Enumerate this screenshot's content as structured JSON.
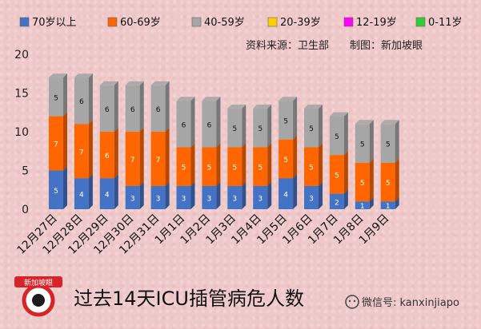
{
  "chart_data": {
    "type": "bar",
    "stacked": true,
    "title": "过去14天ICU插管病危人数",
    "source_label": "资料来源：卫生部",
    "credit_label": "制图：新加坡眼",
    "categories": [
      "12月27日",
      "12月28日",
      "12月29日",
      "12月30日",
      "12月31日",
      "1月1日",
      "1月2日",
      "1月3日",
      "1月4日",
      "1月5日",
      "1月6日",
      "1月7日",
      "1月8日",
      "1月9日"
    ],
    "series": [
      {
        "name": "70岁以上",
        "color": "#4472c4",
        "values": [
          5,
          4,
          4,
          3,
          3,
          3,
          3,
          3,
          3,
          4,
          3,
          2,
          1,
          1
        ]
      },
      {
        "name": "60-69岁",
        "color": "#ff6600",
        "values": [
          7,
          7,
          6,
          7,
          7,
          5,
          5,
          5,
          5,
          5,
          5,
          5,
          5,
          5
        ]
      },
      {
        "name": "40-59岁",
        "color": "#a6a6a6",
        "values": [
          5,
          6,
          6,
          6,
          6,
          6,
          6,
          5,
          5,
          5,
          5,
          5,
          5,
          5
        ]
      },
      {
        "name": "20-39岁",
        "color": "#ffcc00",
        "values": [
          0,
          0,
          0,
          0,
          0,
          0,
          0,
          0,
          0,
          0,
          0,
          0,
          0,
          0
        ]
      },
      {
        "name": "12-19岁",
        "color": "#ff00ff",
        "values": [
          0,
          0,
          0,
          0,
          0,
          0,
          0,
          0,
          0,
          0,
          0,
          0,
          0,
          0
        ]
      },
      {
        "name": "0-11岁",
        "color": "#33cc33",
        "values": [
          0,
          0,
          0,
          0,
          0,
          0,
          0,
          0,
          0,
          0,
          0,
          0,
          0,
          0
        ]
      }
    ],
    "ylim": [
      0,
      20
    ],
    "yticks": [
      0,
      5,
      10,
      15,
      20
    ],
    "legend_position": "top"
  },
  "footer": {
    "wechat": "微信号: kanxinjiapo",
    "logo_text": "新加坡眼"
  }
}
